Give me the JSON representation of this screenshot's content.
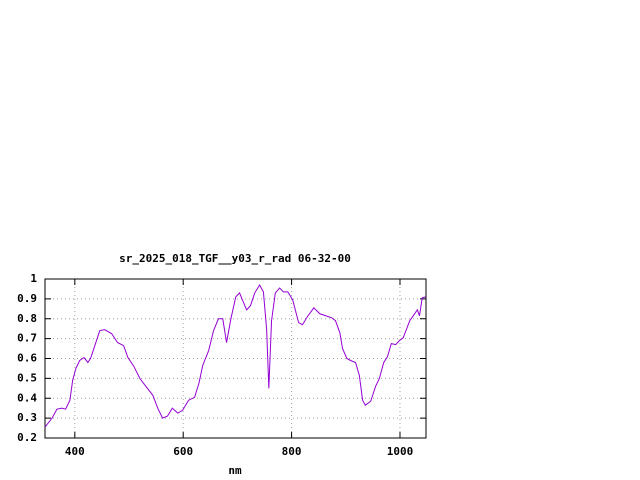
{
  "chart_data": {
    "type": "line",
    "title": "sr_2025_018_TGF__y03_r_rad 06-32-00",
    "x_label": "nm",
    "xlim": [
      345,
      1048
    ],
    "ylim": [
      0.2,
      1
    ],
    "xticks": [
      400,
      600,
      800,
      1000
    ],
    "yticks": [
      0.2,
      0.3,
      0.4,
      0.5,
      0.6,
      0.7,
      0.8,
      0.9,
      1
    ],
    "grid": true,
    "series": [
      {
        "color": "#9400d3",
        "x": [
          345,
          358,
          367,
          376,
          383,
          391,
          396,
          402,
          409,
          417,
          424,
          429,
          437,
          446,
          455,
          468,
          479,
          490,
          498,
          509,
          520,
          531,
          544,
          553,
          562,
          571,
          580,
          590,
          599,
          610,
          621,
          629,
          636,
          647,
          656,
          665,
          673,
          680,
          688,
          697,
          704,
          710,
          717,
          724,
          732,
          741,
          748,
          754,
          758,
          763,
          770,
          778,
          785,
          793,
          802,
          813,
          820,
          829,
          841,
          852,
          863,
          874,
          881,
          889,
          894,
          902,
          909,
          918,
          925,
          931,
          936,
          946,
          955,
          962,
          970,
          977,
          984,
          992,
          999,
          1006,
          1018,
          1027,
          1032,
          1036,
          1041,
          1047
        ],
        "values": [
          0.255,
          0.3,
          0.345,
          0.35,
          0.345,
          0.39,
          0.49,
          0.55,
          0.59,
          0.605,
          0.58,
          0.6,
          0.665,
          0.74,
          0.745,
          0.725,
          0.68,
          0.665,
          0.605,
          0.56,
          0.5,
          0.46,
          0.415,
          0.35,
          0.3,
          0.31,
          0.35,
          0.325,
          0.34,
          0.39,
          0.405,
          0.475,
          0.565,
          0.64,
          0.74,
          0.8,
          0.8,
          0.68,
          0.8,
          0.91,
          0.93,
          0.89,
          0.845,
          0.865,
          0.93,
          0.97,
          0.935,
          0.745,
          0.45,
          0.79,
          0.93,
          0.955,
          0.935,
          0.935,
          0.895,
          0.78,
          0.77,
          0.81,
          0.855,
          0.825,
          0.815,
          0.805,
          0.79,
          0.73,
          0.65,
          0.6,
          0.59,
          0.58,
          0.515,
          0.39,
          0.365,
          0.385,
          0.46,
          0.5,
          0.58,
          0.61,
          0.675,
          0.67,
          0.69,
          0.705,
          0.79,
          0.825,
          0.845,
          0.815,
          0.905,
          0.91
        ]
      }
    ]
  }
}
